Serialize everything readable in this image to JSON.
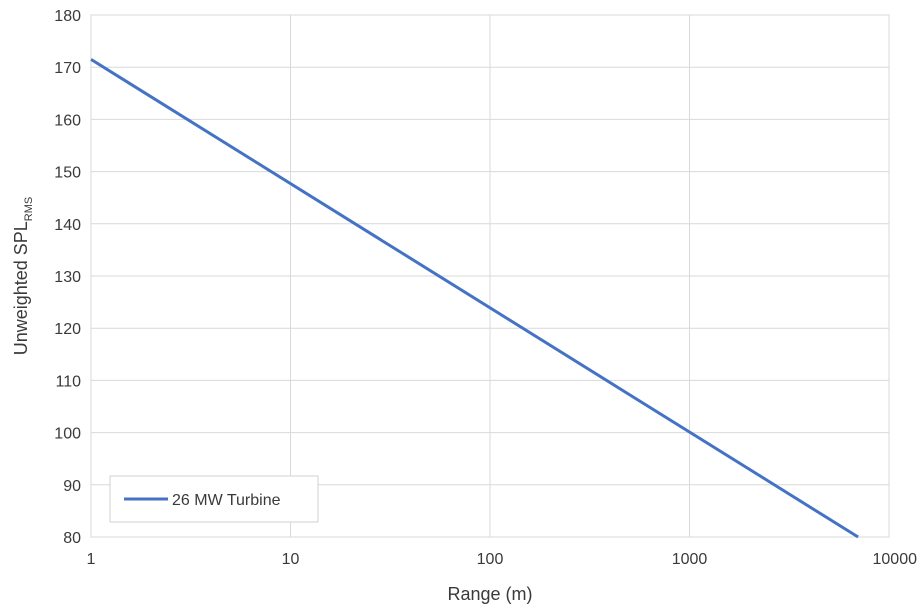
{
  "chart_data": {
    "type": "line",
    "xscale": "log",
    "xlim": [
      1,
      10000
    ],
    "ylim": [
      80,
      180
    ],
    "xticks": [
      "1",
      "10",
      "100",
      "1000",
      "10000"
    ],
    "yticks": [
      "80",
      "90",
      "100",
      "110",
      "120",
      "130",
      "140",
      "150",
      "160",
      "170",
      "180"
    ],
    "xlabel": "Range  (m)",
    "ylabel_main": "Unweighted  SPL",
    "ylabel_sub": "RMS",
    "grid": true,
    "legend_position": "bottom-left",
    "series": [
      {
        "name": "26 MW Turbine",
        "color": "#4472C4",
        "x": [
          1,
          7000
        ],
        "y": [
          171.5,
          80
        ]
      }
    ]
  }
}
